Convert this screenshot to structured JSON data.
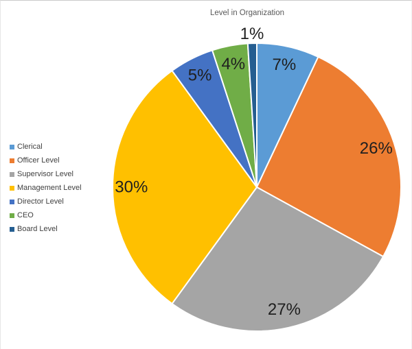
{
  "chart_data": {
    "type": "pie",
    "title": "Level in Organization",
    "categories": [
      "Clerical",
      "Officer Level",
      "Supervisor Level",
      "Management Level",
      "Director Level",
      "CEO",
      "Board Level"
    ],
    "values": [
      7,
      26,
      27,
      30,
      5,
      4,
      1
    ],
    "labels": [
      "7%",
      "26%",
      "27%",
      "30%",
      "5%",
      "4%",
      "1%"
    ],
    "colors": [
      "#5B9BD5",
      "#ED7D31",
      "#A5A5A5",
      "#FFC000",
      "#4472C4",
      "#70AD47",
      "#255E91"
    ],
    "unit": "%",
    "start_angle_deg": 0,
    "direction": "clockwise",
    "legend_position": "left",
    "label_color": "#1f1f1f",
    "title_color": "#595959",
    "slice_border_color": "#ffffff"
  }
}
